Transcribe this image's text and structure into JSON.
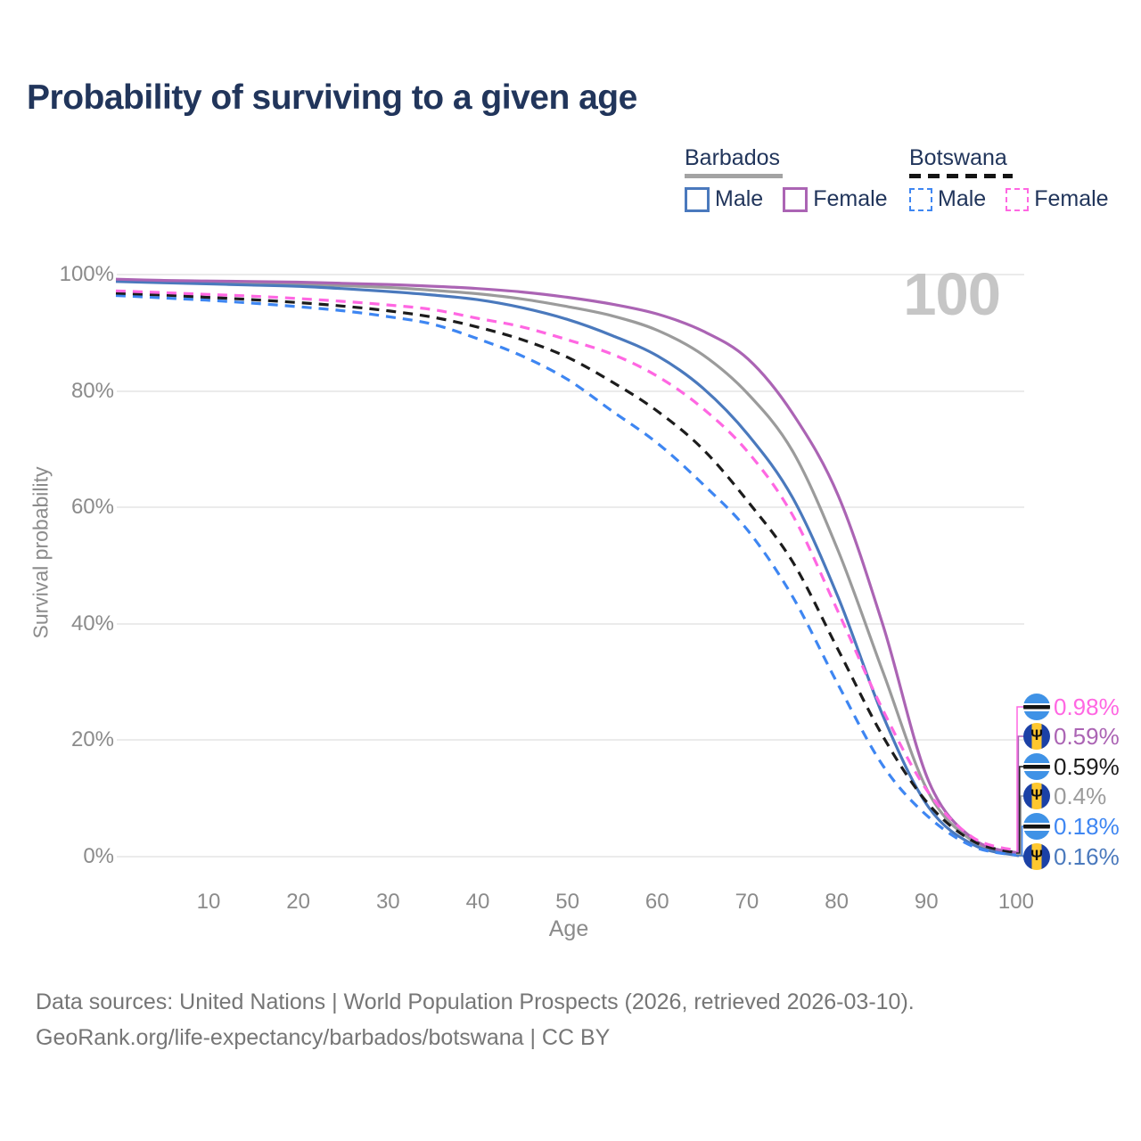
{
  "title": "Probability of surviving to a given age",
  "watermark": "100",
  "icons": {
    "barbados_trident": "Ψ"
  },
  "legend": {
    "groups": [
      {
        "label": "Barbados",
        "line_style": "solid",
        "underline_color": "#a3a3a3",
        "items": [
          {
            "label": "Male",
            "color": "#4a79bd"
          },
          {
            "label": "Female",
            "color": "#ab64b4"
          }
        ]
      },
      {
        "label": "Botswana",
        "line_style": "dashed",
        "underline_color": "#141414",
        "items": [
          {
            "label": "Male",
            "color": "#3e86f2"
          },
          {
            "label": "Female",
            "color": "#ff67e2"
          }
        ]
      }
    ]
  },
  "chart_data": {
    "type": "line",
    "title": "Probability of surviving to a given age",
    "xlabel": "Age",
    "ylabel": "Survival probability",
    "xlim": [
      0,
      100
    ],
    "ylim": [
      0,
      100
    ],
    "grid": "horizontal",
    "legend_position": "top-right",
    "x_tick_labels": [
      "10",
      "20",
      "30",
      "40",
      "50",
      "60",
      "70",
      "80",
      "90",
      "100"
    ],
    "y_tick_labels": [
      "100%",
      "80%",
      "60%",
      "40%",
      "20%",
      "0%"
    ],
    "x": [
      0,
      5,
      10,
      15,
      20,
      25,
      30,
      35,
      40,
      45,
      50,
      55,
      60,
      65,
      70,
      75,
      80,
      85,
      90,
      95,
      100
    ],
    "series": [
      {
        "id": "barbados-male",
        "name": "Barbados Male",
        "color": "#4a79bd",
        "dashed": false,
        "end_label": "0.16%",
        "values": [
          98.8,
          98.6,
          98.4,
          98.2,
          98.0,
          97.6,
          97.1,
          96.5,
          95.7,
          94.3,
          92.3,
          89.5,
          86.0,
          80.5,
          72.5,
          61.5,
          44.5,
          24.0,
          8.5,
          2.0,
          0.16
        ]
      },
      {
        "id": "barbados-female",
        "name": "Barbados Female",
        "color": "#ab64b4",
        "dashed": false,
        "end_label": "0.59%",
        "values": [
          99.2,
          99.0,
          98.9,
          98.8,
          98.7,
          98.5,
          98.3,
          98.0,
          97.6,
          97.0,
          96.1,
          94.9,
          93.2,
          90.3,
          85.5,
          76.0,
          62.0,
          39.5,
          13.0,
          3.0,
          0.59
        ]
      },
      {
        "id": "barbados-gray",
        "name": "Barbados (unlabeled gray line)",
        "color": "#9b9b9b",
        "dashed": false,
        "end_label": "0.4%",
        "values": [
          99.0,
          98.8,
          98.7,
          98.6,
          98.4,
          98.1,
          97.8,
          97.3,
          96.7,
          95.8,
          94.5,
          92.9,
          90.4,
          86.2,
          79.5,
          69.5,
          52.5,
          31.5,
          11.0,
          2.6,
          0.4
        ]
      },
      {
        "id": "botswana-male",
        "name": "Botswana Male",
        "color": "#3e86f2",
        "dashed": true,
        "end_label": "0.18%",
        "values": [
          96.4,
          96.0,
          95.6,
          95.1,
          94.5,
          93.8,
          92.8,
          91.5,
          89.0,
          86.0,
          82.0,
          76.5,
          71.0,
          64.0,
          56.0,
          44.5,
          29.5,
          15.5,
          6.8,
          1.7,
          0.18
        ]
      },
      {
        "id": "botswana-female",
        "name": "Botswana Female",
        "color": "#ff67e2",
        "dashed": true,
        "end_label": "0.98%",
        "values": [
          97.2,
          96.9,
          96.6,
          96.3,
          95.9,
          95.4,
          94.8,
          94.0,
          92.5,
          91.0,
          88.8,
          86.3,
          82.5,
          77.0,
          69.5,
          58.5,
          42.0,
          25.0,
          11.0,
          3.2,
          0.98
        ]
      },
      {
        "id": "botswana-black",
        "name": "Botswana (unlabeled black dashed line)",
        "color": "#1c1c1c",
        "dashed": true,
        "end_label": "0.59%",
        "values": [
          96.8,
          96.5,
          96.1,
          95.7,
          95.2,
          94.6,
          93.8,
          92.7,
          91.0,
          88.8,
          85.8,
          81.5,
          76.5,
          70.0,
          61.0,
          50.5,
          35.5,
          20.5,
          9.0,
          2.6,
          0.59
        ]
      }
    ]
  },
  "end_labels": [
    {
      "flag": "botswana",
      "text": "0.98%",
      "color": "#ff67e2"
    },
    {
      "flag": "barbados",
      "text": "0.59%",
      "color": "#ab64b4"
    },
    {
      "flag": "botswana",
      "text": "0.59%",
      "color": "#1c1c1c"
    },
    {
      "flag": "barbados",
      "text": "0.4%",
      "color": "#9b9b9b"
    },
    {
      "flag": "botswana",
      "text": "0.18%",
      "color": "#3e86f2"
    },
    {
      "flag": "barbados",
      "text": "0.16%",
      "color": "#4a79bd"
    }
  ],
  "footer": {
    "line1": "Data sources: United Nations | World Population Prospects (2026, retrieved 2026-03-10).",
    "line2": "GeoRank.org/life-expectancy/barbados/botswana | CC BY"
  }
}
